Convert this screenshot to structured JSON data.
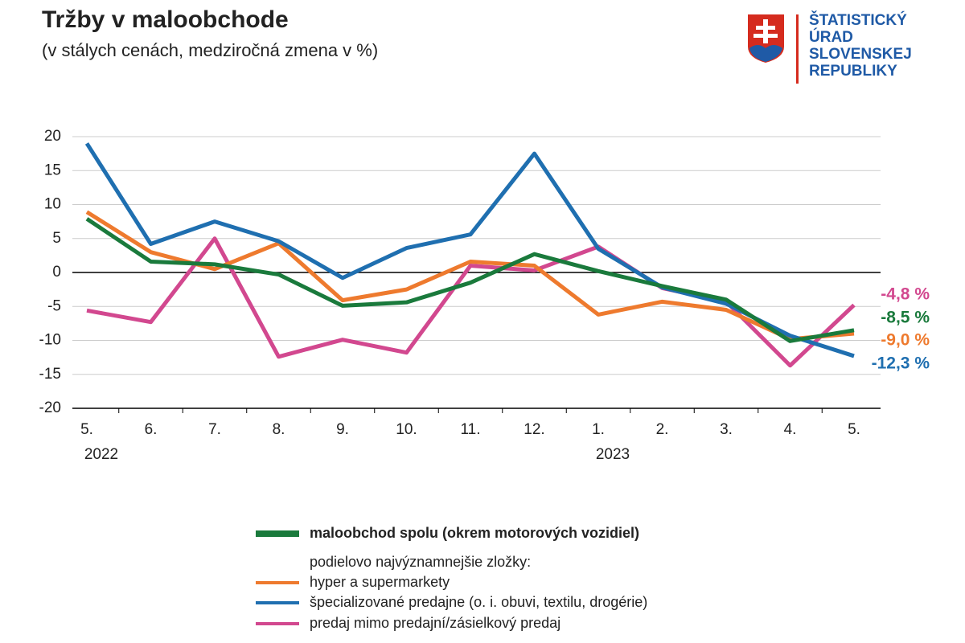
{
  "chart_data": {
    "type": "line",
    "title": "Tržby v maloobchode",
    "subtitle": "(v stálych cenách, medziročná zmena v %)",
    "logo_text": [
      "ŠTATISTICKÝ",
      "ÚRAD",
      "SLOVENSKEJ",
      "REPUBLIKY"
    ],
    "categories": [
      "5.",
      "6.",
      "7.",
      "8.",
      "9.",
      "10.",
      "11.",
      "12.",
      "1.",
      "2.",
      "3.",
      "4.",
      "5."
    ],
    "category_groups": [
      "2022",
      null,
      null,
      null,
      null,
      null,
      null,
      null,
      "2023",
      null,
      null,
      null,
      null
    ],
    "ylim": [
      -20,
      20
    ],
    "yticks": [
      20,
      15,
      10,
      5,
      0,
      -5,
      -10,
      -15,
      -20
    ],
    "grid": true,
    "legend_subtitle": "podielovo najvýznamnejšie zložky:",
    "series": [
      {
        "name": "maloobchod spolu (okrem motorových vozidiel)",
        "color": "#1a7a3c",
        "values": [
          7.9,
          1.6,
          1.2,
          -0.3,
          -4.9,
          -4.4,
          -1.5,
          2.7,
          0.2,
          -2.0,
          -4.0,
          -10.1,
          -8.5
        ],
        "value_labels": [
          null,
          null,
          null,
          null,
          null,
          null,
          null,
          null,
          null,
          null,
          null,
          null,
          "-8,5 %"
        ]
      },
      {
        "name": "hyper a supermarkety",
        "color": "#ee7a2e",
        "values": [
          8.9,
          3.0,
          0.5,
          4.3,
          -4.1,
          -2.5,
          1.6,
          1.0,
          -6.2,
          -4.3,
          -5.5,
          -9.8,
          -9.0
        ],
        "value_labels": [
          null,
          null,
          null,
          null,
          null,
          null,
          null,
          null,
          null,
          null,
          null,
          null,
          "-9,0 %"
        ]
      },
      {
        "name": "špecializované predajne (o. i. obuvi, textilu, drogérie)",
        "color": "#1f6fb0",
        "values": [
          19.0,
          4.2,
          7.5,
          4.6,
          -0.8,
          3.6,
          5.6,
          17.5,
          3.5,
          -2.2,
          -4.6,
          -9.3,
          -12.3
        ],
        "value_labels": [
          null,
          null,
          null,
          null,
          null,
          null,
          null,
          null,
          null,
          null,
          null,
          null,
          "-12,3 %"
        ]
      },
      {
        "name": "predaj mimo predajní/zásielkový predaj",
        "color": "#d2488f",
        "values": [
          -5.6,
          -7.3,
          5.0,
          -12.4,
          -9.9,
          -11.8,
          1.0,
          0.3,
          3.8,
          -2.3,
          -4.3,
          -13.7,
          -4.8
        ],
        "value_labels": [
          null,
          null,
          null,
          null,
          null,
          null,
          null,
          null,
          null,
          null,
          null,
          null,
          "-4,8 %"
        ]
      }
    ]
  }
}
